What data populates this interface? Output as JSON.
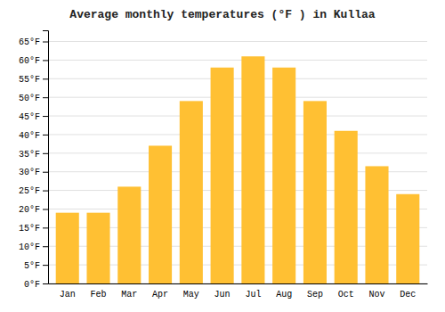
{
  "chart_data": {
    "type": "bar",
    "title": "Average monthly temperatures (°F ) in Kullaa",
    "categories": [
      "Jan",
      "Feb",
      "Mar",
      "Apr",
      "May",
      "Jun",
      "Jul",
      "Aug",
      "Sep",
      "Oct",
      "Nov",
      "Dec"
    ],
    "values": [
      19,
      19,
      26,
      37,
      49,
      58,
      61,
      58,
      49,
      41,
      31.5,
      24
    ],
    "color": "#FFC033",
    "ylim": [
      0,
      68
    ],
    "yticks": [
      {
        "value": 0,
        "label": "0°F"
      },
      {
        "value": 5,
        "label": "5°F"
      },
      {
        "value": 10,
        "label": "10°F"
      },
      {
        "value": 15,
        "label": "15°F"
      },
      {
        "value": 20,
        "label": "20°F"
      },
      {
        "value": 25,
        "label": "25°F"
      },
      {
        "value": 30,
        "label": "30°F"
      },
      {
        "value": 35,
        "label": "35°F"
      },
      {
        "value": 40,
        "label": "40°F"
      },
      {
        "value": 45,
        "label": "45°F"
      },
      {
        "value": 50,
        "label": "50°F"
      },
      {
        "value": 55,
        "label": "55°F"
      },
      {
        "value": 60,
        "label": "60°F"
      },
      {
        "value": 65,
        "label": "65°F"
      }
    ],
    "grid": true
  }
}
